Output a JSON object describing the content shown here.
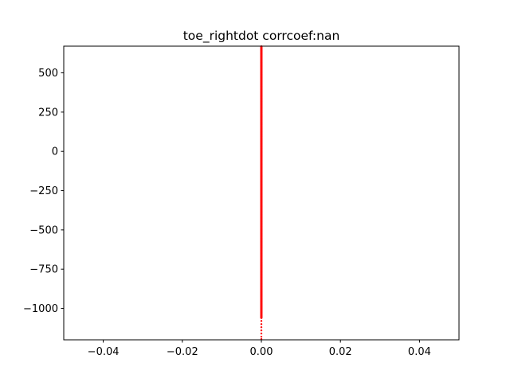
{
  "chart_data": {
    "type": "scatter",
    "title": "toe_rightdot corrcoef:nan",
    "xlabel": "",
    "ylabel": "",
    "xlim": [
      -0.05,
      0.05
    ],
    "ylim": [
      -1200,
      670
    ],
    "xticks": [
      -0.04,
      -0.02,
      0.0,
      0.02,
      0.04
    ],
    "xtick_labels": [
      "−0.04",
      "−0.02",
      "0.00",
      "0.02",
      "0.04"
    ],
    "yticks": [
      500,
      250,
      0,
      -250,
      -500,
      -750,
      -1000
    ],
    "ytick_labels": [
      "500",
      "250",
      "0",
      "−250",
      "−500",
      "−750",
      "−1000"
    ],
    "grid": false,
    "legend": "none",
    "marker_color": "#ff0000",
    "series": [
      {
        "x_constant": 0.0,
        "y_dense_range": [
          -1060,
          670
        ],
        "y_sparse_points": [
          -1080,
          -1100,
          -1120,
          -1140,
          -1160,
          -1180,
          -1195
        ]
      }
    ]
  }
}
